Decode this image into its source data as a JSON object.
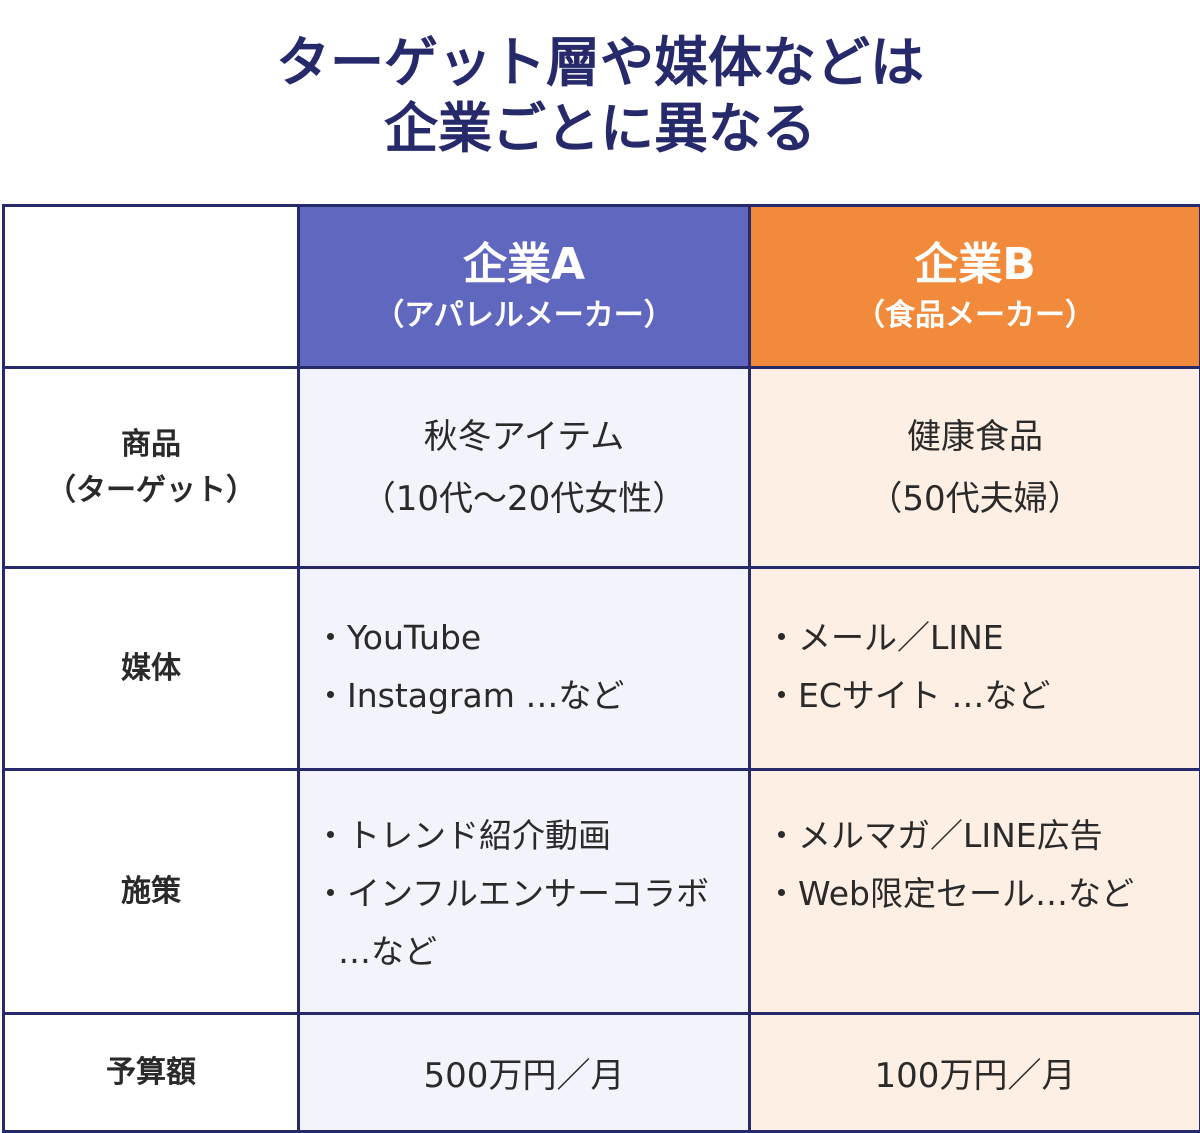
{
  "title": {
    "line1": "ターゲット層や媒体などは",
    "line2": "企業ごとに異なる"
  },
  "columns": {
    "a": {
      "name": "企業A",
      "sub": "（アパレルメーカー）",
      "color": "#5f67bf"
    },
    "b": {
      "name": "企業B",
      "sub": "（食品メーカー）",
      "color": "#f28a3b"
    }
  },
  "rows": {
    "product": {
      "label_line1": "商品",
      "label_line2": "（ターゲット）",
      "a_line1": "秋冬アイテム",
      "a_line2": "（10代〜20代女性）",
      "b_line1": "健康食品",
      "b_line2": "（50代夫婦）"
    },
    "media": {
      "label": "媒体",
      "a_items": [
        "・YouTube",
        "・Instagram …など"
      ],
      "b_items": [
        "・メール／LINE",
        "・ECサイト …など"
      ]
    },
    "measures": {
      "label": "施策",
      "a_items": [
        "・トレンド紹介動画",
        "・インフルエンサーコラボ",
        "…など"
      ],
      "b_items": [
        "・メルマガ／LINE広告",
        "・Web限定セール…など"
      ]
    },
    "budget": {
      "label": "予算額",
      "a": "500万円／月",
      "b": "100万円／月"
    }
  },
  "colors": {
    "border": "#262a6b",
    "title": "#262a6b",
    "cell_a_bg": "#f2f3fb",
    "cell_b_bg": "#fdefe4"
  }
}
